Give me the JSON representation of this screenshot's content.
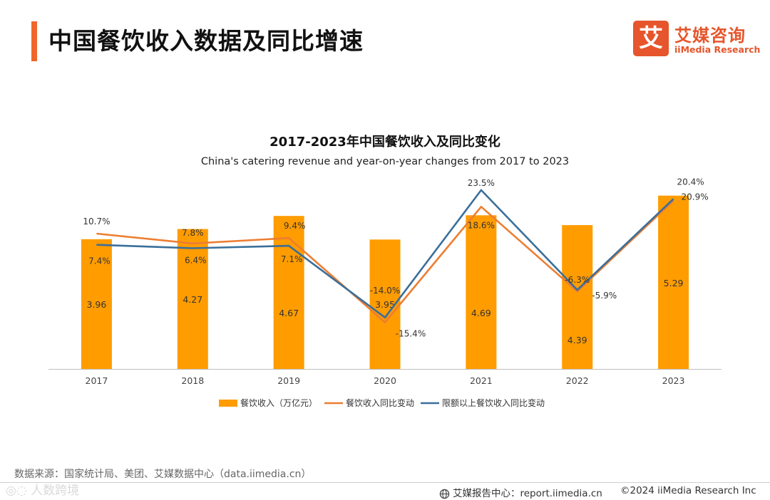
{
  "header": {
    "title": "中国餐饮收入数据及同比增速"
  },
  "logo": {
    "mark": "艾",
    "name_cn": "艾媒咨询",
    "name_en": "iiMedia Research"
  },
  "colors": {
    "accent": "#f0652a",
    "bar": "#ff9c00",
    "line_total": "#ed7d31",
    "line_above_quota": "#3a6f9a",
    "brand": "#e6552b"
  },
  "chart_data": {
    "type": "bar",
    "title": "2017-2023年中国餐饮收入及同比变化",
    "subtitle": "China's catering revenue and year-on-year changes from 2017 to 2023",
    "categories": [
      "2017",
      "2018",
      "2019",
      "2020",
      "2021",
      "2022",
      "2023"
    ],
    "series": [
      {
        "name": "餐饮收入（万亿元）",
        "kind": "bar",
        "axis": "left",
        "values": [
          3.96,
          4.27,
          4.67,
          3.95,
          4.69,
          4.39,
          5.29
        ],
        "labels": [
          "3.96",
          "4.27",
          "4.67",
          "3.95",
          "4.69",
          "4.39",
          "5.29"
        ]
      },
      {
        "name": "餐饮收入同比变动",
        "kind": "line",
        "axis": "right",
        "values": [
          10.7,
          7.8,
          9.4,
          -15.4,
          18.6,
          -6.3,
          20.4
        ],
        "labels": [
          "10.7%",
          "7.8%",
          "9.4%",
          "-15.4%",
          "18.6%",
          "-6.3%",
          "20.4%"
        ]
      },
      {
        "name": "限额以上餐饮收入同比变动",
        "kind": "line",
        "axis": "right",
        "values": [
          7.4,
          6.4,
          7.1,
          -14.0,
          23.5,
          -5.9,
          20.9
        ],
        "labels": [
          "7.4%",
          "6.4%",
          "7.1%",
          "-14.0%",
          "23.5%",
          "-5.9%",
          "20.9%"
        ]
      }
    ],
    "ylim_left": [
      0,
      6
    ],
    "ylim_right": [
      -30,
      30
    ],
    "grid": false,
    "legend_position": "bottom"
  },
  "footer": {
    "source": "数据来源：国家统计局、美团、艾媒数据中心（data.iimedia.cn）",
    "report_center": "艾媒报告中心：report.iimedia.cn",
    "copyright": "©2024  iiMedia Research  Inc",
    "watermark": "人数跨境"
  }
}
